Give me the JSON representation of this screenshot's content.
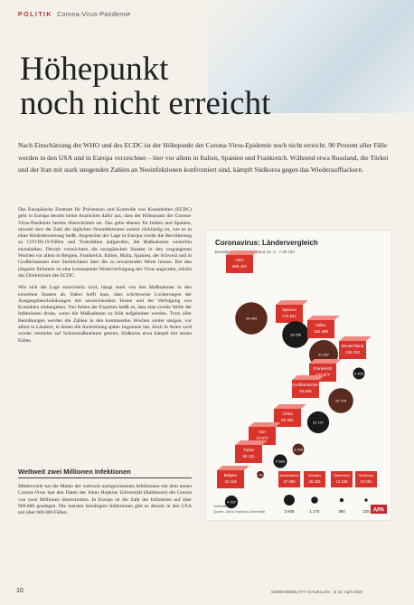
{
  "header": {
    "section": "POLITIK",
    "topic": "Corona-Virus-Pandemie"
  },
  "title": {
    "line1": "Höhepunkt",
    "line2": "noch nicht erreicht"
  },
  "lead": "Nach Einschätzung der WHO und des ECDC ist der Höhepunkt der Corona-Virus-Epidemie noch nicht erreicht. 90 Prozent aller Fälle werden in den USA und in Europa verzeichnet – hier vor allem in Italien, Spanien und Frankreich. Während etwa Russland, die Türkei und der Iran mit stark steigenden Zahlen an Neuinfektionen konfrontiert sind, kämpft Südkorea gegen das Wiederaufflackern.",
  "body": [
    "Das Europäische Zentrum für Prävention und Kontrolle von Krankheiten (ECDC) geht in Europa derzeit keine Anzeichen dafür aus, dass der Höhepunkt der Corona-Virus-Pandemie bereits überschritten sei. Das gelte ebenso für Italien und Spanien, obwohl dort die Zahl der täglichen Neuinfektionen zuletzt rückläufig ist, wie es in einer Risikobewertung heißt. Angesichts der Lage in Europa wurde die Bevölkerung zu COVID-19-Fällen und Todesfällen aufgerufen, die Maßnahmen weiterhin einzuhalten. Derzeit verzeichnen die europäischen Staaten in den vergangenen Wochen vor allem in Belgien, Frankreich, Italien, Malta, Spanien, der Schweiz und in Großbritannien eine Sterblichkeit über die zu erwartenden Werte hinaus. Bei den jüngsten Stimmen ist eine konsequente Weiterverfolgung des Virus angeraten, erklärt das Direktorium des ECDC.",
    "Wie sich die Lage entwickeln wird, hängt stark von den Maßnahmen in den einzelnen Staaten ab. Dabei hofft man, dass schrittweise Lockerungen der Ausgangsbeschränkungen mit ausreichendem Testen und der Verfolgung von Kontakten einhergehen. Von Seiten der Experten heißt es, dass eine zweite Welle der Infektionen drohe, wenn die Maßnahmen zu früh aufgehoben werden. Trotz aller Bemühungen werden die Zahlen in den kommenden Wochen weiter steigen, vor allem in Ländern, in denen die Ausbreitung später begonnen hat. Auch in Asien wird wieder vermehrt auf Schutzmaßnahmen gesetzt, Südkorea etwa kämpft mit neuen Fällen."
  ],
  "subheading": "Weltweit zwei Millionen Infektionen",
  "body2": "Mittlerweile hat die Marke der weltweit nachgewiesenen Infektionen mit dem neuen Corona-Virus laut den Daten der Johns Hopkins Universität (Baltimore) die Grenze von zwei Millionen überschritten. In Europa ist die Zahl der Infizierten auf über 900.000 gestiegen. Die meisten bestätigten Infektionen gibt es derzeit in den USA mit über 600.000 Fällen.",
  "infographic": {
    "title": "Coronavirus: Ländervergleich",
    "subtitle": "Bestätigte Infizierte¹, Stand 15. 4., 7.35 Uhr",
    "countries": [
      {
        "name": "USA",
        "cases": "609 422",
        "deaths": 26064,
        "deaths_label": "26 064"
      },
      {
        "name": "Spanien",
        "cases": "172 541",
        "deaths": 18056,
        "deaths_label": "18 056"
      },
      {
        "name": "Italien",
        "cases": "162 488",
        "deaths": 21067,
        "deaths_label": "21 067"
      },
      {
        "name": "Deutschland",
        "cases": "132 210",
        "deaths": 3495,
        "deaths_label": "3 495"
      },
      {
        "name": "Frankreich",
        "cases": "137 877",
        "deaths": 15729,
        "deaths_label": "15 729"
      },
      {
        "name": "Großbritannien",
        "cases": "94 845",
        "deaths": 12107,
        "deaths_label": "12 107"
      },
      {
        "name": "China",
        "cases": "83 352",
        "deaths": 3346,
        "deaths_label": "3 346"
      },
      {
        "name": "Iran",
        "cases": "74 877",
        "deaths": 4683,
        "deaths_label": "4 683"
      },
      {
        "name": "Türkei",
        "cases": "65 111",
        "deaths": 1403,
        "deaths_label": "1 403"
      },
      {
        "name": "Belgien",
        "cases": "31 119",
        "deaths": 4157,
        "deaths_label": "4 157"
      },
      {
        "name": "Niederlande",
        "cases": "27 580",
        "deaths": 2945,
        "deaths_label": "2 945"
      },
      {
        "name": "Schweiz",
        "cases": "26 336",
        "deaths": 1174,
        "deaths_label": "1 174"
      },
      {
        "name": "Österreich",
        "cases": "14 226",
        "deaths": 384,
        "deaths_label": "384"
      },
      {
        "name": "Südkorea",
        "cases": "10 591",
        "deaths": 225,
        "deaths_label": "225"
      }
    ],
    "legend": "Todesfälle",
    "source": "Quelle: Johns Hopkins Universität",
    "logo": "APA"
  },
  "footer": {
    "page": "10",
    "publication": "GEMEINDEBLATT AKTUELLES · 2/ 15. April 2020"
  }
}
